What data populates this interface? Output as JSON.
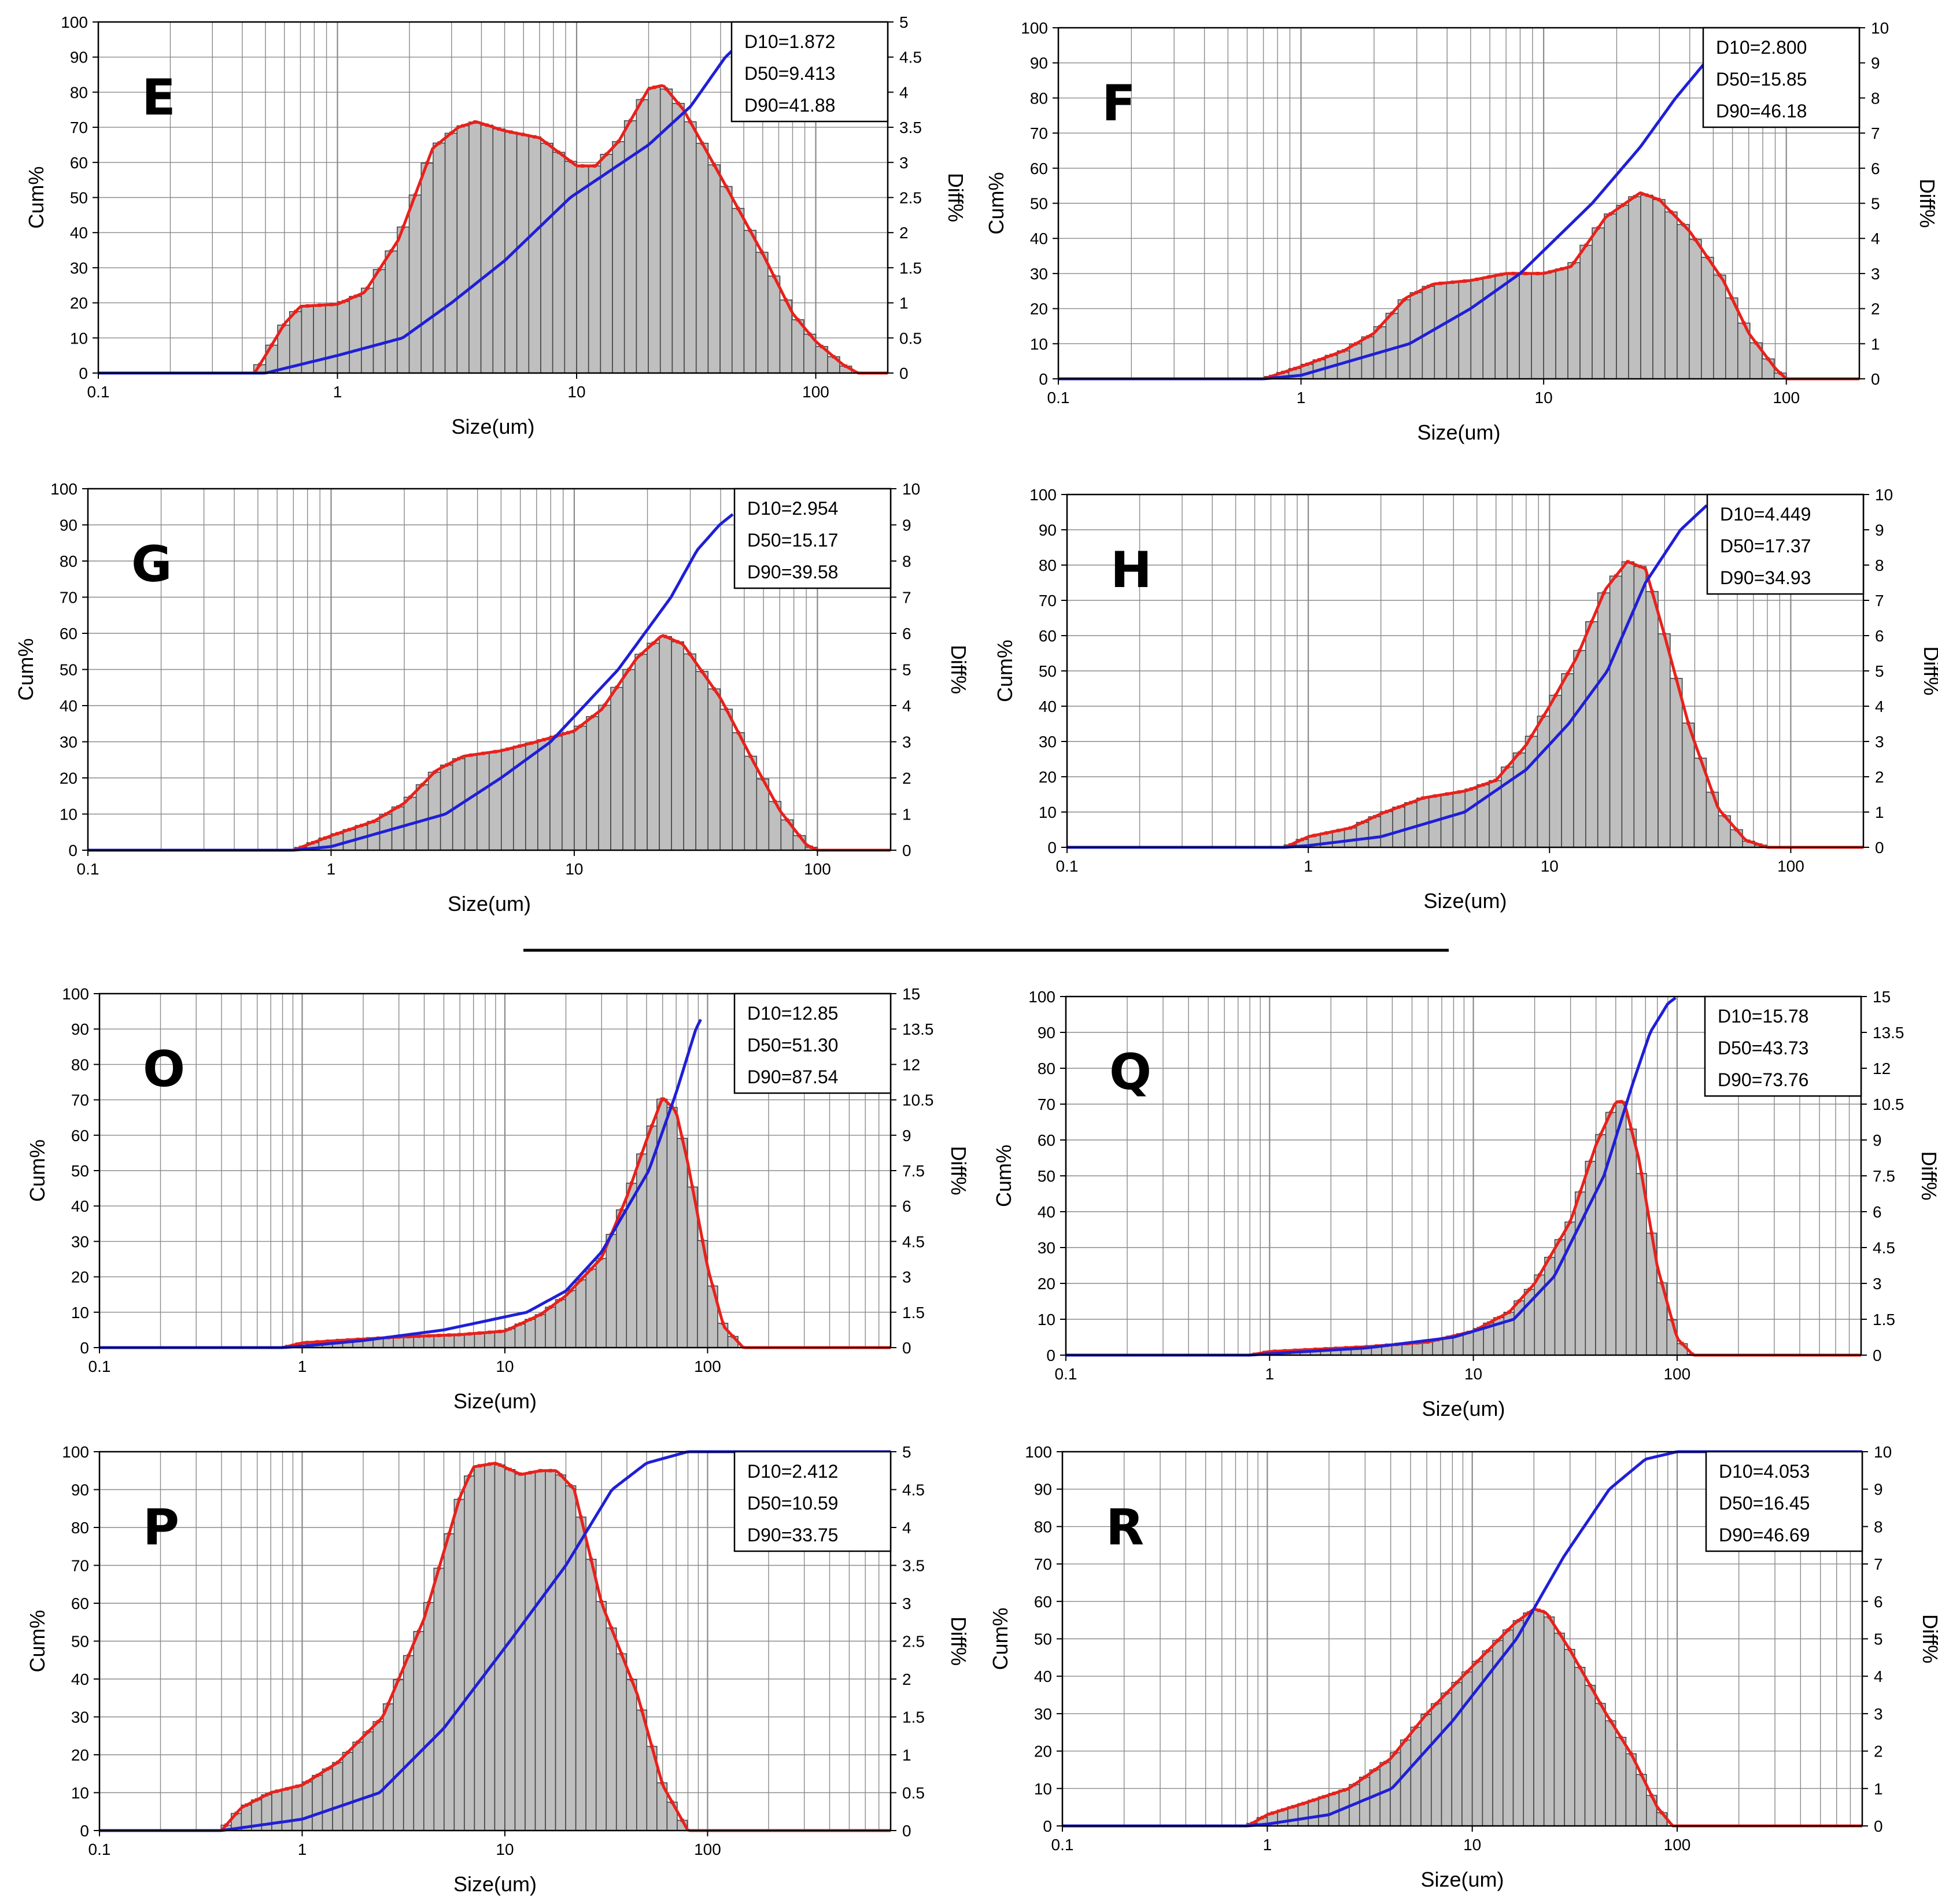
{
  "figure": {
    "separator_color": "#000000",
    "colors": {
      "cumulative_line": "#1f1fd6",
      "differential_line": "#e8211c",
      "bar_fill": "#bfbfbf",
      "bar_edge": "#444444",
      "grid": "#8a8a8a"
    }
  },
  "chart_data": [
    {
      "type": "bar",
      "panel_label": "E",
      "xlabel": "Size(um)",
      "ylabel": "Cum%",
      "y2label": "Diff%",
      "x_scale": "log",
      "xlim": [
        0.1,
        200
      ],
      "x_ticks": [
        "0.1",
        "1",
        "10",
        "100"
      ],
      "ylim": [
        0,
        100
      ],
      "y_ticks": [
        "0",
        "10",
        "20",
        "30",
        "40",
        "50",
        "60",
        "70",
        "80",
        "90",
        "100"
      ],
      "y2lim": [
        0,
        5
      ],
      "y2_ticks": [
        "0",
        "0.5",
        "1",
        "1.5",
        "2",
        "2.5",
        "3",
        "3.5",
        "4",
        "4.5",
        "5"
      ],
      "stats": [
        "D10=1.872",
        "D50=9.413",
        "D90=41.88"
      ],
      "grid": true,
      "differential_profile": [
        [
          0.45,
          0
        ],
        [
          0.5,
          0.25
        ],
        [
          0.6,
          0.7
        ],
        [
          0.7,
          0.95
        ],
        [
          1.0,
          0.98
        ],
        [
          1.3,
          1.15
        ],
        [
          1.8,
          1.9
        ],
        [
          2.5,
          3.2
        ],
        [
          3.2,
          3.5
        ],
        [
          3.8,
          3.58
        ],
        [
          5,
          3.45
        ],
        [
          7,
          3.35
        ],
        [
          10,
          2.95
        ],
        [
          12,
          2.95
        ],
        [
          15,
          3.3
        ],
        [
          20,
          4.05
        ],
        [
          23,
          4.1
        ],
        [
          28,
          3.75
        ],
        [
          40,
          2.8
        ],
        [
          60,
          1.7
        ],
        [
          80,
          0.85
        ],
        [
          100,
          0.45
        ],
        [
          130,
          0.12
        ],
        [
          150,
          0
        ]
      ],
      "cumulative_profile": [
        [
          0.1,
          0
        ],
        [
          0.5,
          0
        ],
        [
          1,
          5
        ],
        [
          1.872,
          10
        ],
        [
          3,
          20
        ],
        [
          5,
          32
        ],
        [
          9.413,
          50
        ],
        [
          20,
          65
        ],
        [
          30,
          76
        ],
        [
          41.88,
          90
        ],
        [
          45,
          92
        ]
      ]
    },
    {
      "type": "bar",
      "panel_label": "F",
      "xlabel": "Size(um)",
      "ylabel": "Cum%",
      "y2label": "Diff%",
      "x_scale": "log",
      "xlim": [
        0.1,
        200
      ],
      "x_ticks": [
        "0.1",
        "1",
        "10",
        "100"
      ],
      "ylim": [
        0,
        100
      ],
      "y_ticks": [
        "0",
        "10",
        "20",
        "30",
        "40",
        "50",
        "60",
        "70",
        "80",
        "90",
        "100"
      ],
      "y2lim": [
        0,
        10
      ],
      "y2_ticks": [
        "0",
        "1",
        "2",
        "3",
        "4",
        "5",
        "6",
        "7",
        "8",
        "9",
        "10"
      ],
      "stats": [
        "D10=2.800",
        "D50=15.85",
        "D90=46.18"
      ],
      "grid": true,
      "differential_profile": [
        [
          0.7,
          0
        ],
        [
          1,
          0.35
        ],
        [
          1.5,
          0.8
        ],
        [
          2,
          1.3
        ],
        [
          2.7,
          2.3
        ],
        [
          3.5,
          2.7
        ],
        [
          5,
          2.8
        ],
        [
          7,
          3.0
        ],
        [
          10,
          3.0
        ],
        [
          13,
          3.2
        ],
        [
          18,
          4.6
        ],
        [
          25,
          5.3
        ],
        [
          30,
          5.1
        ],
        [
          40,
          4.2
        ],
        [
          55,
          2.8
        ],
        [
          70,
          1.3
        ],
        [
          90,
          0.3
        ],
        [
          100,
          0
        ],
        [
          200,
          0
        ]
      ],
      "cumulative_profile": [
        [
          0.1,
          0
        ],
        [
          0.7,
          0
        ],
        [
          1,
          1
        ],
        [
          2.8,
          10
        ],
        [
          5,
          20
        ],
        [
          8,
          30
        ],
        [
          15.85,
          50
        ],
        [
          25,
          66
        ],
        [
          35,
          80
        ],
        [
          46.18,
          90
        ]
      ]
    },
    {
      "type": "bar",
      "panel_label": "G",
      "xlabel": "Size(um)",
      "ylabel": "Cum%",
      "y2label": "Diff%",
      "x_scale": "log",
      "xlim": [
        0.1,
        200
      ],
      "x_ticks": [
        "0.1",
        "1",
        "10",
        "100"
      ],
      "ylim": [
        0,
        100
      ],
      "y_ticks": [
        "0",
        "10",
        "20",
        "30",
        "40",
        "50",
        "60",
        "70",
        "80",
        "90",
        "100"
      ],
      "y2lim": [
        0,
        10
      ],
      "y2_ticks": [
        "0",
        "1",
        "2",
        "3",
        "4",
        "5",
        "6",
        "7",
        "8",
        "9",
        "10"
      ],
      "stats": [
        "D10=2.954",
        "D50=15.17",
        "D90=39.58"
      ],
      "grid": true,
      "differential_profile": [
        [
          0.7,
          0
        ],
        [
          1,
          0.4
        ],
        [
          1.5,
          0.8
        ],
        [
          2,
          1.3
        ],
        [
          2.7,
          2.2
        ],
        [
          3.5,
          2.6
        ],
        [
          5,
          2.75
        ],
        [
          7,
          3.0
        ],
        [
          10,
          3.3
        ],
        [
          13,
          3.9
        ],
        [
          18,
          5.3
        ],
        [
          23,
          5.95
        ],
        [
          28,
          5.7
        ],
        [
          40,
          4.2
        ],
        [
          55,
          2.4
        ],
        [
          70,
          1.1
        ],
        [
          90,
          0.15
        ],
        [
          100,
          0
        ],
        [
          200,
          0
        ]
      ],
      "cumulative_profile": [
        [
          0.1,
          0
        ],
        [
          0.7,
          0
        ],
        [
          1,
          1
        ],
        [
          2.954,
          10
        ],
        [
          5,
          20
        ],
        [
          8,
          30
        ],
        [
          15.17,
          50
        ],
        [
          25,
          70
        ],
        [
          32,
          83
        ],
        [
          39.58,
          90
        ],
        [
          45,
          93
        ]
      ]
    },
    {
      "type": "bar",
      "panel_label": "H",
      "xlabel": "Size(um)",
      "ylabel": "Cum%",
      "y2label": "Diff%",
      "x_scale": "log",
      "xlim": [
        0.1,
        200
      ],
      "x_ticks": [
        "0.1",
        "1",
        "10",
        "100"
      ],
      "ylim": [
        0,
        100
      ],
      "y_ticks": [
        "0",
        "10",
        "20",
        "30",
        "40",
        "50",
        "60",
        "70",
        "80",
        "90",
        "100"
      ],
      "y2lim": [
        0,
        10
      ],
      "y2_ticks": [
        "0",
        "1",
        "2",
        "3",
        "4",
        "5",
        "6",
        "7",
        "8",
        "9",
        "10"
      ],
      "stats": [
        "D10=4.449",
        "D50=17.37",
        "D90=34.93"
      ],
      "grid": true,
      "differential_profile": [
        [
          0.8,
          0
        ],
        [
          1,
          0.3
        ],
        [
          1.5,
          0.55
        ],
        [
          2,
          0.95
        ],
        [
          3,
          1.4
        ],
        [
          4.5,
          1.6
        ],
        [
          6,
          1.9
        ],
        [
          8,
          2.9
        ],
        [
          10,
          4.0
        ],
        [
          13,
          5.4
        ],
        [
          17,
          7.3
        ],
        [
          21,
          8.1
        ],
        [
          25,
          7.9
        ],
        [
          30,
          6.0
        ],
        [
          38,
          3.4
        ],
        [
          50,
          1.1
        ],
        [
          65,
          0.2
        ],
        [
          80,
          0
        ],
        [
          200,
          0
        ]
      ],
      "cumulative_profile": [
        [
          0.1,
          0
        ],
        [
          0.8,
          0
        ],
        [
          1,
          0.5
        ],
        [
          2,
          3
        ],
        [
          4.449,
          10
        ],
        [
          8,
          22
        ],
        [
          12,
          35
        ],
        [
          17.37,
          50
        ],
        [
          25,
          75
        ],
        [
          34.93,
          90
        ],
        [
          45,
          97
        ]
      ]
    },
    {
      "type": "bar",
      "panel_label": "O",
      "xlabel": "Size(um)",
      "ylabel": "Cum%",
      "y2label": "Diff%",
      "x_scale": "log",
      "xlim": [
        0.1,
        800
      ],
      "x_ticks": [
        "0.1",
        "1",
        "10",
        "100"
      ],
      "ylim": [
        0,
        100
      ],
      "y_ticks": [
        "0",
        "10",
        "20",
        "30",
        "40",
        "50",
        "60",
        "70",
        "80",
        "90",
        "100"
      ],
      "y2lim": [
        0,
        15
      ],
      "y2_ticks": [
        "0",
        "1.5",
        "3",
        "4.5",
        "6",
        "7.5",
        "9",
        "10.5",
        "12",
        "13.5",
        "15"
      ],
      "stats": [
        "D10=12.85",
        "D50=51.30",
        "D90=87.54"
      ],
      "grid": true,
      "differential_profile": [
        [
          0.8,
          0
        ],
        [
          1,
          0.2
        ],
        [
          1.5,
          0.3
        ],
        [
          3,
          0.45
        ],
        [
          6,
          0.55
        ],
        [
          10,
          0.7
        ],
        [
          15,
          1.4
        ],
        [
          20,
          2.2
        ],
        [
          30,
          3.8
        ],
        [
          40,
          6.4
        ],
        [
          50,
          8.8
        ],
        [
          60,
          10.6
        ],
        [
          70,
          10
        ],
        [
          80,
          7.8
        ],
        [
          100,
          3.4
        ],
        [
          120,
          0.9
        ],
        [
          150,
          0
        ],
        [
          800,
          0
        ]
      ],
      "cumulative_profile": [
        [
          0.1,
          0
        ],
        [
          0.8,
          0
        ],
        [
          1,
          0.4
        ],
        [
          2,
          2
        ],
        [
          5,
          5
        ],
        [
          12.85,
          10
        ],
        [
          20,
          16
        ],
        [
          30,
          27
        ],
        [
          51.3,
          50
        ],
        [
          70,
          72
        ],
        [
          87.54,
          90
        ],
        [
          95,
          94
        ]
      ]
    },
    {
      "type": "bar",
      "panel_label": "Q",
      "xlabel": "Size(um)",
      "ylabel": "Cum%",
      "y2label": "Diff%",
      "x_scale": "log",
      "xlim": [
        0.1,
        800
      ],
      "x_ticks": [
        "0.1",
        "1",
        "10",
        "100"
      ],
      "ylim": [
        0,
        100
      ],
      "y_ticks": [
        "0",
        "10",
        "20",
        "30",
        "40",
        "50",
        "60",
        "70",
        "80",
        "90",
        "100"
      ],
      "y2lim": [
        0,
        15
      ],
      "y2_ticks": [
        "0",
        "1.5",
        "3",
        "4.5",
        "6",
        "7.5",
        "9",
        "10.5",
        "12",
        "13.5",
        "15"
      ],
      "stats": [
        "D10=15.78",
        "D50=43.73",
        "D90=73.76"
      ],
      "grid": true,
      "differential_profile": [
        [
          0.8,
          0
        ],
        [
          1,
          0.15
        ],
        [
          3,
          0.35
        ],
        [
          6,
          0.55
        ],
        [
          10,
          1.0
        ],
        [
          15,
          1.8
        ],
        [
          20,
          3.0
        ],
        [
          30,
          5.6
        ],
        [
          40,
          8.8
        ],
        [
          50,
          10.6
        ],
        [
          55,
          10.6
        ],
        [
          65,
          8.2
        ],
        [
          80,
          3.7
        ],
        [
          100,
          0.7
        ],
        [
          120,
          0
        ],
        [
          800,
          0
        ]
      ],
      "cumulative_profile": [
        [
          0.1,
          0
        ],
        [
          0.8,
          0
        ],
        [
          1,
          0.4
        ],
        [
          3,
          2
        ],
        [
          8,
          5
        ],
        [
          15.78,
          10
        ],
        [
          25,
          22
        ],
        [
          43.73,
          50
        ],
        [
          60,
          75
        ],
        [
          73.76,
          90
        ],
        [
          90,
          98
        ],
        [
          100,
          100
        ]
      ]
    },
    {
      "type": "bar",
      "panel_label": "P",
      "xlabel": "Size(um)",
      "ylabel": "Cum%",
      "y2label": "Diff%",
      "x_scale": "log",
      "xlim": [
        0.1,
        800
      ],
      "x_ticks": [
        "0.1",
        "1",
        "10",
        "100"
      ],
      "ylim": [
        0,
        100
      ],
      "y_ticks": [
        "0",
        "10",
        "20",
        "30",
        "40",
        "50",
        "60",
        "70",
        "80",
        "90",
        "100"
      ],
      "y2lim": [
        0,
        5
      ],
      "y2_ticks": [
        "0",
        "0.5",
        "1",
        "1.5",
        "2",
        "2.5",
        "3",
        "3.5",
        "4",
        "4.5",
        "5"
      ],
      "stats": [
        "D10=2.412",
        "D50=10.59",
        "D90=33.75"
      ],
      "grid": true,
      "differential_profile": [
        [
          0.4,
          0
        ],
        [
          0.5,
          0.3
        ],
        [
          0.7,
          0.5
        ],
        [
          1,
          0.6
        ],
        [
          1.5,
          0.9
        ],
        [
          2.5,
          1.5
        ],
        [
          4,
          2.8
        ],
        [
          6,
          4.4
        ],
        [
          7,
          4.8
        ],
        [
          9,
          4.85
        ],
        [
          12,
          4.7
        ],
        [
          15,
          4.75
        ],
        [
          18,
          4.75
        ],
        [
          22,
          4.5
        ],
        [
          30,
          3.0
        ],
        [
          45,
          1.8
        ],
        [
          60,
          0.6
        ],
        [
          80,
          0
        ],
        [
          800,
          0
        ]
      ],
      "cumulative_profile": [
        [
          0.1,
          0
        ],
        [
          0.4,
          0
        ],
        [
          1,
          3
        ],
        [
          2.412,
          10
        ],
        [
          5,
          27
        ],
        [
          10.59,
          50
        ],
        [
          20,
          70
        ],
        [
          33.75,
          90
        ],
        [
          50,
          97
        ],
        [
          80,
          100
        ],
        [
          800,
          100
        ]
      ]
    },
    {
      "type": "bar",
      "panel_label": "R",
      "xlabel": "Size(um)",
      "ylabel": "Cum%",
      "y2label": "Diff%",
      "x_scale": "log",
      "xlim": [
        0.1,
        800
      ],
      "x_ticks": [
        "0.1",
        "1",
        "10",
        "100"
      ],
      "ylim": [
        0,
        100
      ],
      "y_ticks": [
        "0",
        "10",
        "20",
        "30",
        "40",
        "50",
        "60",
        "70",
        "80",
        "90",
        "100"
      ],
      "y2lim": [
        0,
        10
      ],
      "y2_ticks": [
        "0",
        "1",
        "2",
        "3",
        "4",
        "5",
        "6",
        "7",
        "8",
        "9",
        "10"
      ],
      "stats": [
        "D10=4.053",
        "D50=16.45",
        "D90=46.69"
      ],
      "grid": true,
      "differential_profile": [
        [
          0.8,
          0
        ],
        [
          1,
          0.3
        ],
        [
          1.5,
          0.6
        ],
        [
          2.5,
          1.0
        ],
        [
          4,
          1.8
        ],
        [
          6,
          3.0
        ],
        [
          9,
          4.0
        ],
        [
          12,
          4.7
        ],
        [
          16,
          5.4
        ],
        [
          20,
          5.8
        ],
        [
          23,
          5.7
        ],
        [
          30,
          4.7
        ],
        [
          45,
          3.0
        ],
        [
          60,
          1.9
        ],
        [
          80,
          0.5
        ],
        [
          95,
          0
        ],
        [
          800,
          0
        ]
      ],
      "cumulative_profile": [
        [
          0.1,
          0
        ],
        [
          0.8,
          0
        ],
        [
          1,
          0.5
        ],
        [
          2,
          3
        ],
        [
          4.053,
          10
        ],
        [
          8,
          28
        ],
        [
          16.45,
          50
        ],
        [
          28,
          72
        ],
        [
          46.69,
          90
        ],
        [
          70,
          98
        ],
        [
          100,
          100
        ],
        [
          800,
          100
        ]
      ]
    }
  ]
}
